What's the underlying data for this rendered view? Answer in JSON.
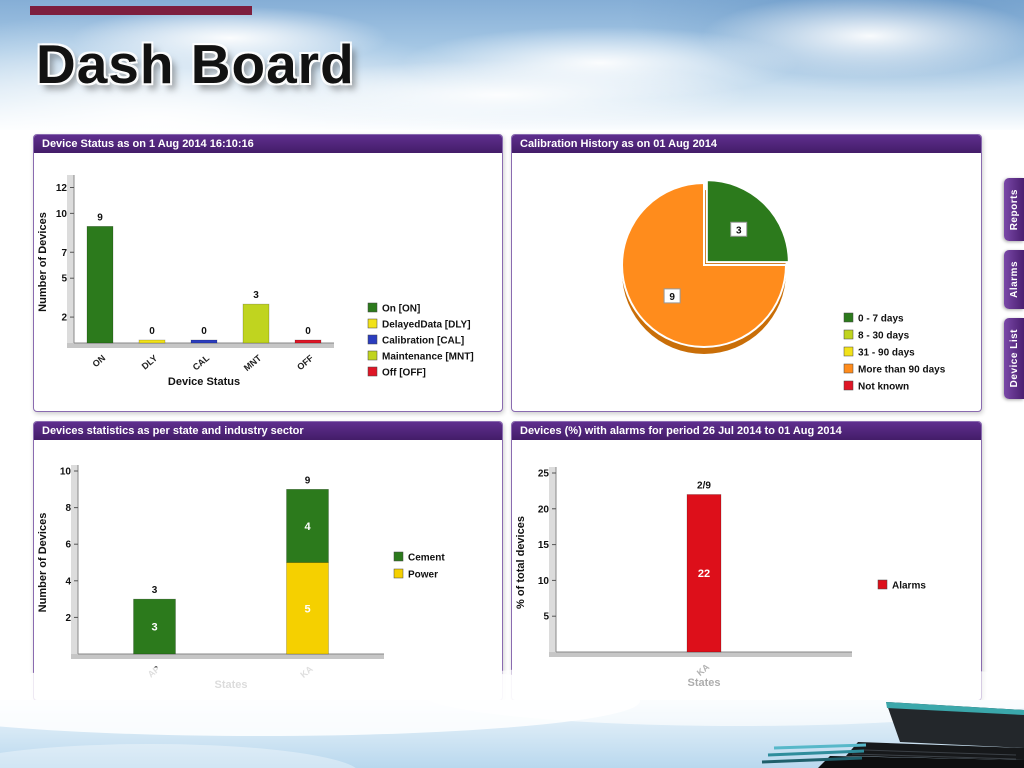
{
  "page": {
    "title": "Dash Board"
  },
  "side_tabs": [
    {
      "label": "Reports"
    },
    {
      "label": "Alarms"
    },
    {
      "label": "Device List"
    }
  ],
  "panels": {
    "device_status": {
      "title": "Device Status as on 1 Aug 2014 16:10:16"
    },
    "calibration_history": {
      "title": "Calibration History as on 01 Aug 2014"
    },
    "state_industry": {
      "title": "Devices statistics as per state and industry sector"
    },
    "alarms": {
      "title": "Devices (%) with alarms for period 26 Jul 2014 to 01 Aug 2014"
    }
  },
  "theme": {
    "panel_header_purple": "#4b2173",
    "tab_purple": "#5b2b87",
    "accent_maroon": "#7d1f3e"
  },
  "chart_data": [
    {
      "id": "device_status",
      "type": "bar",
      "title": "Device Status as on 1 Aug 2014 16:10:16",
      "categories": [
        "ON",
        "DLY",
        "CAL",
        "MNT",
        "OFF"
      ],
      "values": [
        9,
        0,
        0,
        3,
        0
      ],
      "bar_colors": [
        "#2c7a1c",
        "#f2e219",
        "#2b3dbf",
        "#c0d41f",
        "#df1626"
      ],
      "xlabel": "Device Status",
      "ylabel": "Number of Devices",
      "ylim": [
        0,
        12.5
      ],
      "yticks": [
        2,
        5,
        7,
        10,
        12
      ],
      "grid": false,
      "legend_position": "right",
      "legend": [
        {
          "label": "On [ON]",
          "color": "#2c7a1c"
        },
        {
          "label": "DelayedData [DLY]",
          "color": "#f2e219"
        },
        {
          "label": "Calibration [CAL]",
          "color": "#2b3dbf"
        },
        {
          "label": "Maintenance [MNT]",
          "color": "#c0d41f"
        },
        {
          "label": "Off [OFF]",
          "color": "#df1626"
        }
      ]
    },
    {
      "id": "calibration_history",
      "type": "pie",
      "title": "Calibration History as on 01 Aug 2014",
      "slices": [
        {
          "label": "0 - 7 days",
          "value": 3,
          "color": "#2c7a1c",
          "exploded": true
        },
        {
          "label": "More than 90 days",
          "value": 9,
          "color": "#ff8c1c"
        }
      ],
      "legend_position": "right",
      "legend": [
        {
          "label": "0 - 7 days",
          "color": "#2c7a1c"
        },
        {
          "label": "8 - 30 days",
          "color": "#c0d41f"
        },
        {
          "label": "31 - 90 days",
          "color": "#f2e219"
        },
        {
          "label": "More than 90 days",
          "color": "#ff8c1c"
        },
        {
          "label": "Not known",
          "color": "#df1626"
        }
      ]
    },
    {
      "id": "state_industry",
      "type": "stacked_bar",
      "title": "Devices statistics as per state and industry sector",
      "categories": [
        "AP",
        "KA"
      ],
      "series": [
        {
          "name": "Cement",
          "color": "#2c7a1c",
          "values": [
            3,
            4
          ]
        },
        {
          "name": "Power",
          "color": "#f5d000",
          "values": [
            0,
            5
          ]
        }
      ],
      "stack_order_bottom_to_top": [
        "Power",
        "Cement"
      ],
      "totals": [
        3,
        9
      ],
      "xlabel": "States",
      "ylabel": "Number of Devices",
      "ylim": [
        0,
        10
      ],
      "yticks": [
        2,
        4,
        6,
        8,
        10
      ],
      "grid": false,
      "legend_position": "right",
      "legend": [
        {
          "label": "Cement",
          "color": "#2c7a1c"
        },
        {
          "label": "Power",
          "color": "#f5d000"
        }
      ]
    },
    {
      "id": "alarms",
      "type": "bar",
      "title": "Devices (%) with alarms for period 26 Jul 2014 to 01 Aug 2014",
      "categories": [
        "KA"
      ],
      "values": [
        22
      ],
      "above_labels": [
        "2/9"
      ],
      "inside_labels": [
        "22"
      ],
      "bar_colors": [
        "#dd0f1a"
      ],
      "xlabel": "States",
      "ylabel": "% of total devices",
      "ylim": [
        0,
        25
      ],
      "yticks": [
        5,
        10,
        15,
        20,
        25
      ],
      "grid": false,
      "legend_position": "right",
      "legend": [
        {
          "label": "Alarms",
          "color": "#dd0f1a"
        }
      ]
    }
  ]
}
